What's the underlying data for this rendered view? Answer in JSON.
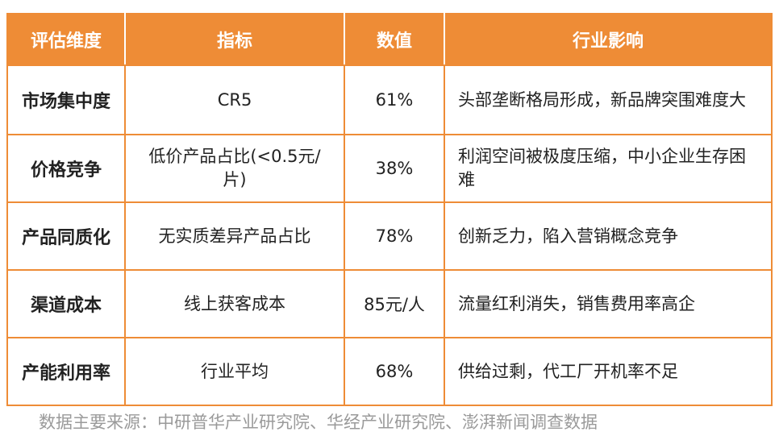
{
  "table": {
    "headers": [
      "评估维度",
      "指标",
      "数值",
      "行业影响"
    ],
    "rows": [
      {
        "dimension": "市场集中度",
        "indicator": "CR5",
        "value": "61%",
        "impact": "头部垄断格局形成，新品牌突围难度大"
      },
      {
        "dimension": "价格竞争",
        "indicator": "低价产品占比(<0.5元/片)",
        "value": "38%",
        "impact": "利润空间被极度压缩，中小企业生存困难"
      },
      {
        "dimension": "产品同质化",
        "indicator": "无实质差异产品占比",
        "value": "78%",
        "impact": "创新乏力，陷入营销概念竞争"
      },
      {
        "dimension": "渠道成本",
        "indicator": "线上获客成本",
        "value": "85元/人",
        "impact": "流量红利消失，销售费用率高企"
      },
      {
        "dimension": "产能利用率",
        "indicator": "行业平均",
        "value": "68%",
        "impact": "供给过剩，代工厂开机率不足"
      }
    ]
  },
  "source": "数据主要来源：中研普华产业研究院、华经产业研究院、澎湃新闻调查数据",
  "colors": {
    "accent": "#ee8c36",
    "header_text": "#ffffff",
    "source_text": "#9a9a9a"
  }
}
